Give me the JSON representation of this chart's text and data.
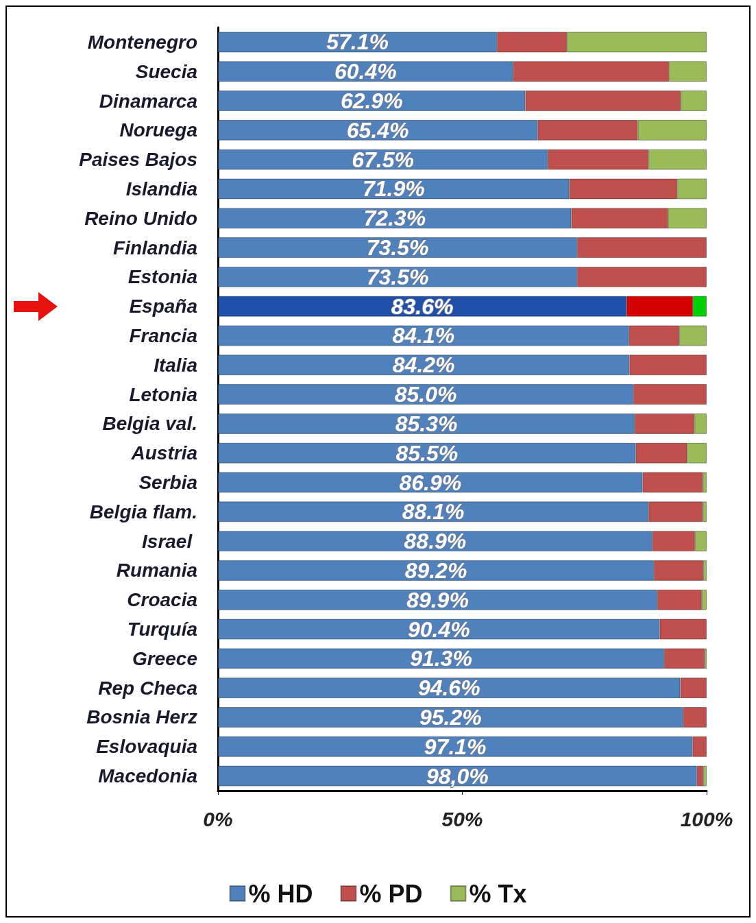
{
  "chart_data": {
    "type": "bar",
    "orientation": "horizontal",
    "stacked": true,
    "categories": [
      "Montenegro",
      "Suecia",
      "Dinamarca",
      "Noruega",
      "Paises Bajos",
      "Islandia",
      "Reino Unido",
      "Finlandia",
      "Estonia",
      "España",
      "Francia",
      "Italia",
      "Letonia",
      "Belgia val.",
      "Austria",
      "Serbia",
      "Belgia flam.",
      "Israel ",
      "Rumania",
      "Croacia",
      "Turquía",
      "Greece",
      "Rep Checa",
      "Bosnia Herz",
      "Eslovaquia",
      "Macedonia"
    ],
    "series": [
      {
        "name": "% HD",
        "color": "#4f81bd",
        "colors": [
          "#4f81bd",
          "#4f81bd",
          "#4f81bd",
          "#4f81bd",
          "#4f81bd",
          "#4f81bd",
          "#4f81bd",
          "#4f81bd",
          "#4f81bd",
          "#1f4fa8",
          "#4f81bd",
          "#4f81bd",
          "#4f81bd",
          "#4f81bd",
          "#4f81bd",
          "#4f81bd",
          "#4f81bd",
          "#4f81bd",
          "#4f81bd",
          "#4f81bd",
          "#4f81bd",
          "#4f81bd",
          "#4f81bd",
          "#4f81bd",
          "#4f81bd",
          "#4f81bd"
        ],
        "values": [
          57.1,
          60.4,
          62.9,
          65.4,
          67.5,
          71.9,
          72.3,
          73.5,
          73.5,
          83.6,
          84.1,
          84.2,
          85.0,
          85.3,
          85.5,
          86.9,
          88.1,
          88.9,
          89.2,
          89.9,
          90.4,
          91.3,
          94.6,
          95.2,
          97.1,
          98.0
        ],
        "value_labels": [
          "57.1%",
          "60.4%",
          "62.9%",
          "65.4%",
          "67.5%",
          "71.9%",
          "72.3%",
          "73.5%",
          "73.5%",
          "83.6%",
          "84.1%",
          "84.2%",
          "85.0%",
          "85.3%",
          "85.5%",
          "86.9%",
          "88.1%",
          "88.9%",
          "89.2%",
          "89.9%",
          "90.4%",
          "91.3%",
          "94.6%",
          "95.2%",
          "97.1%",
          "98,0%"
        ]
      },
      {
        "name": "% PD",
        "color": "#c0504d",
        "colors": [
          "#c0504d",
          "#c0504d",
          "#c0504d",
          "#c0504d",
          "#c0504d",
          "#c0504d",
          "#c0504d",
          "#c0504d",
          "#c0504d",
          "#d40000",
          "#c0504d",
          "#c0504d",
          "#c0504d",
          "#c0504d",
          "#c0504d",
          "#c0504d",
          "#c0504d",
          "#c0504d",
          "#c0504d",
          "#c0504d",
          "#c0504d",
          "#c0504d",
          "#c0504d",
          "#c0504d",
          "#c0504d",
          "#c0504d"
        ],
        "values": [
          14.3,
          31.9,
          31.8,
          20.5,
          20.6,
          22.1,
          19.8,
          26.5,
          26.5,
          13.6,
          10.3,
          15.8,
          15.0,
          12.2,
          10.5,
          12.3,
          11.1,
          8.7,
          10.1,
          9.1,
          9.6,
          8.3,
          5.4,
          4.8,
          2.9,
          1.3
        ]
      },
      {
        "name": "% Tx",
        "color": "#9bbb59",
        "colors": [
          "#9bbb59",
          "#9bbb59",
          "#9bbb59",
          "#9bbb59",
          "#9bbb59",
          "#9bbb59",
          "#9bbb59",
          "#9bbb59",
          "#9bbb59",
          "#00d000",
          "#9bbb59",
          "#9bbb59",
          "#9bbb59",
          "#9bbb59",
          "#9bbb59",
          "#9bbb59",
          "#9bbb59",
          "#9bbb59",
          "#9bbb59",
          "#9bbb59",
          "#9bbb59",
          "#9bbb59",
          "#9bbb59",
          "#9bbb59",
          "#9bbb59",
          "#9bbb59"
        ],
        "values": [
          28.6,
          7.7,
          5.3,
          14.1,
          11.9,
          6.0,
          7.9,
          null,
          null,
          2.8,
          5.6,
          null,
          null,
          2.5,
          4.0,
          0.8,
          0.8,
          2.4,
          0.7,
          1.0,
          null,
          0.4,
          null,
          null,
          null,
          0.7
        ]
      }
    ],
    "xlim": [
      0,
      100
    ],
    "xticks": [
      {
        "value": 0,
        "label": "0%"
      },
      {
        "value": 50,
        "label": "50%"
      },
      {
        "value": 100,
        "label": "100%"
      }
    ],
    "grid": false,
    "legend": "bottom"
  }
}
